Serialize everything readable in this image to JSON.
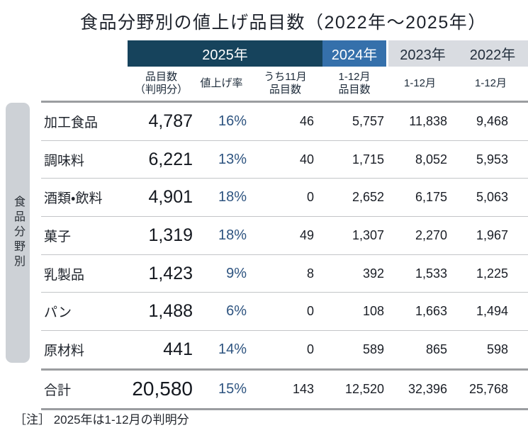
{
  "title": "食品分野別の値上げ品目数（2022年～2025年）",
  "sidebar_label": "食品分野別",
  "year_headers": {
    "y2025": "2025年",
    "y2024": "2024年",
    "y2023": "2023年",
    "y2022": "2022年"
  },
  "subheaders": {
    "count": "品目数\n（判明分）",
    "rate": "値上げ率",
    "nov": "うち11月\n品目数",
    "m2024": "1-12月\n品目数",
    "m2023": "1-12月",
    "m2022": "1-12月"
  },
  "rows": [
    {
      "label": "加工食品",
      "count": "4,787",
      "rate": "16%",
      "nov": "46",
      "y2024": "5,757",
      "y2023": "11,838",
      "y2022": "9,468"
    },
    {
      "label": "調味料",
      "count": "6,221",
      "rate": "13%",
      "nov": "40",
      "y2024": "1,715",
      "y2023": "8,052",
      "y2022": "5,953"
    },
    {
      "label": "酒類・飲料",
      "count": "4,901",
      "rate": "18%",
      "nov": "0",
      "y2024": "2,652",
      "y2023": "6,175",
      "y2022": "5,063"
    },
    {
      "label": "菓子",
      "count": "1,319",
      "rate": "18%",
      "nov": "49",
      "y2024": "1,307",
      "y2023": "2,270",
      "y2022": "1,967"
    },
    {
      "label": "乳製品",
      "count": "1,423",
      "rate": "9%",
      "nov": "8",
      "y2024": "392",
      "y2023": "1,533",
      "y2022": "1,225"
    },
    {
      "label": "パン",
      "count": "1,488",
      "rate": "6%",
      "nov": "0",
      "y2024": "108",
      "y2023": "1,663",
      "y2022": "1,494"
    },
    {
      "label": "原材料",
      "count": "441",
      "rate": "14%",
      "nov": "0",
      "y2024": "589",
      "y2023": "865",
      "y2022": "598"
    }
  ],
  "total": {
    "label": "合計",
    "count": "20,580",
    "rate": "15%",
    "nov": "143",
    "y2024": "12,520",
    "y2023": "32,396",
    "y2022": "25,768"
  },
  "note": "［注］ 2025年は1-12月の判明分",
  "colors": {
    "band_2025": "#16435c",
    "band_2024": "#3570ab",
    "band_past_bg": "#d9dce1",
    "rate_text": "#2e5480",
    "sidebar_bg": "#cdd1d6",
    "thick_rule": "#9b9da0",
    "thin_rule": "#c3c5c8"
  },
  "chart_data": {
    "type": "table",
    "title": "食品分野別の値上げ品目数（2022年～2025年）",
    "column_groups": [
      "2025年",
      "2025年",
      "2025年",
      "2024年",
      "2023年",
      "2022年"
    ],
    "columns": [
      "品目数（判明分）",
      "値上げ率",
      "うち11月品目数",
      "1-12月品目数",
      "1-12月",
      "1-12月"
    ],
    "categories": [
      "加工食品",
      "調味料",
      "酒類・飲料",
      "菓子",
      "乳製品",
      "パン",
      "原材料",
      "合計"
    ],
    "rows": [
      [
        4787,
        "16%",
        46,
        5757,
        11838,
        9468
      ],
      [
        6221,
        "13%",
        40,
        1715,
        8052,
        5953
      ],
      [
        4901,
        "18%",
        0,
        2652,
        6175,
        5063
      ],
      [
        1319,
        "18%",
        49,
        1307,
        2270,
        1967
      ],
      [
        1423,
        "9%",
        8,
        392,
        1533,
        1225
      ],
      [
        1488,
        "6%",
        0,
        108,
        1663,
        1494
      ],
      [
        441,
        "14%",
        0,
        589,
        865,
        598
      ],
      [
        20580,
        "15%",
        143,
        12520,
        32396,
        25768
      ]
    ],
    "note": "2025年は1-12月の判明分"
  }
}
